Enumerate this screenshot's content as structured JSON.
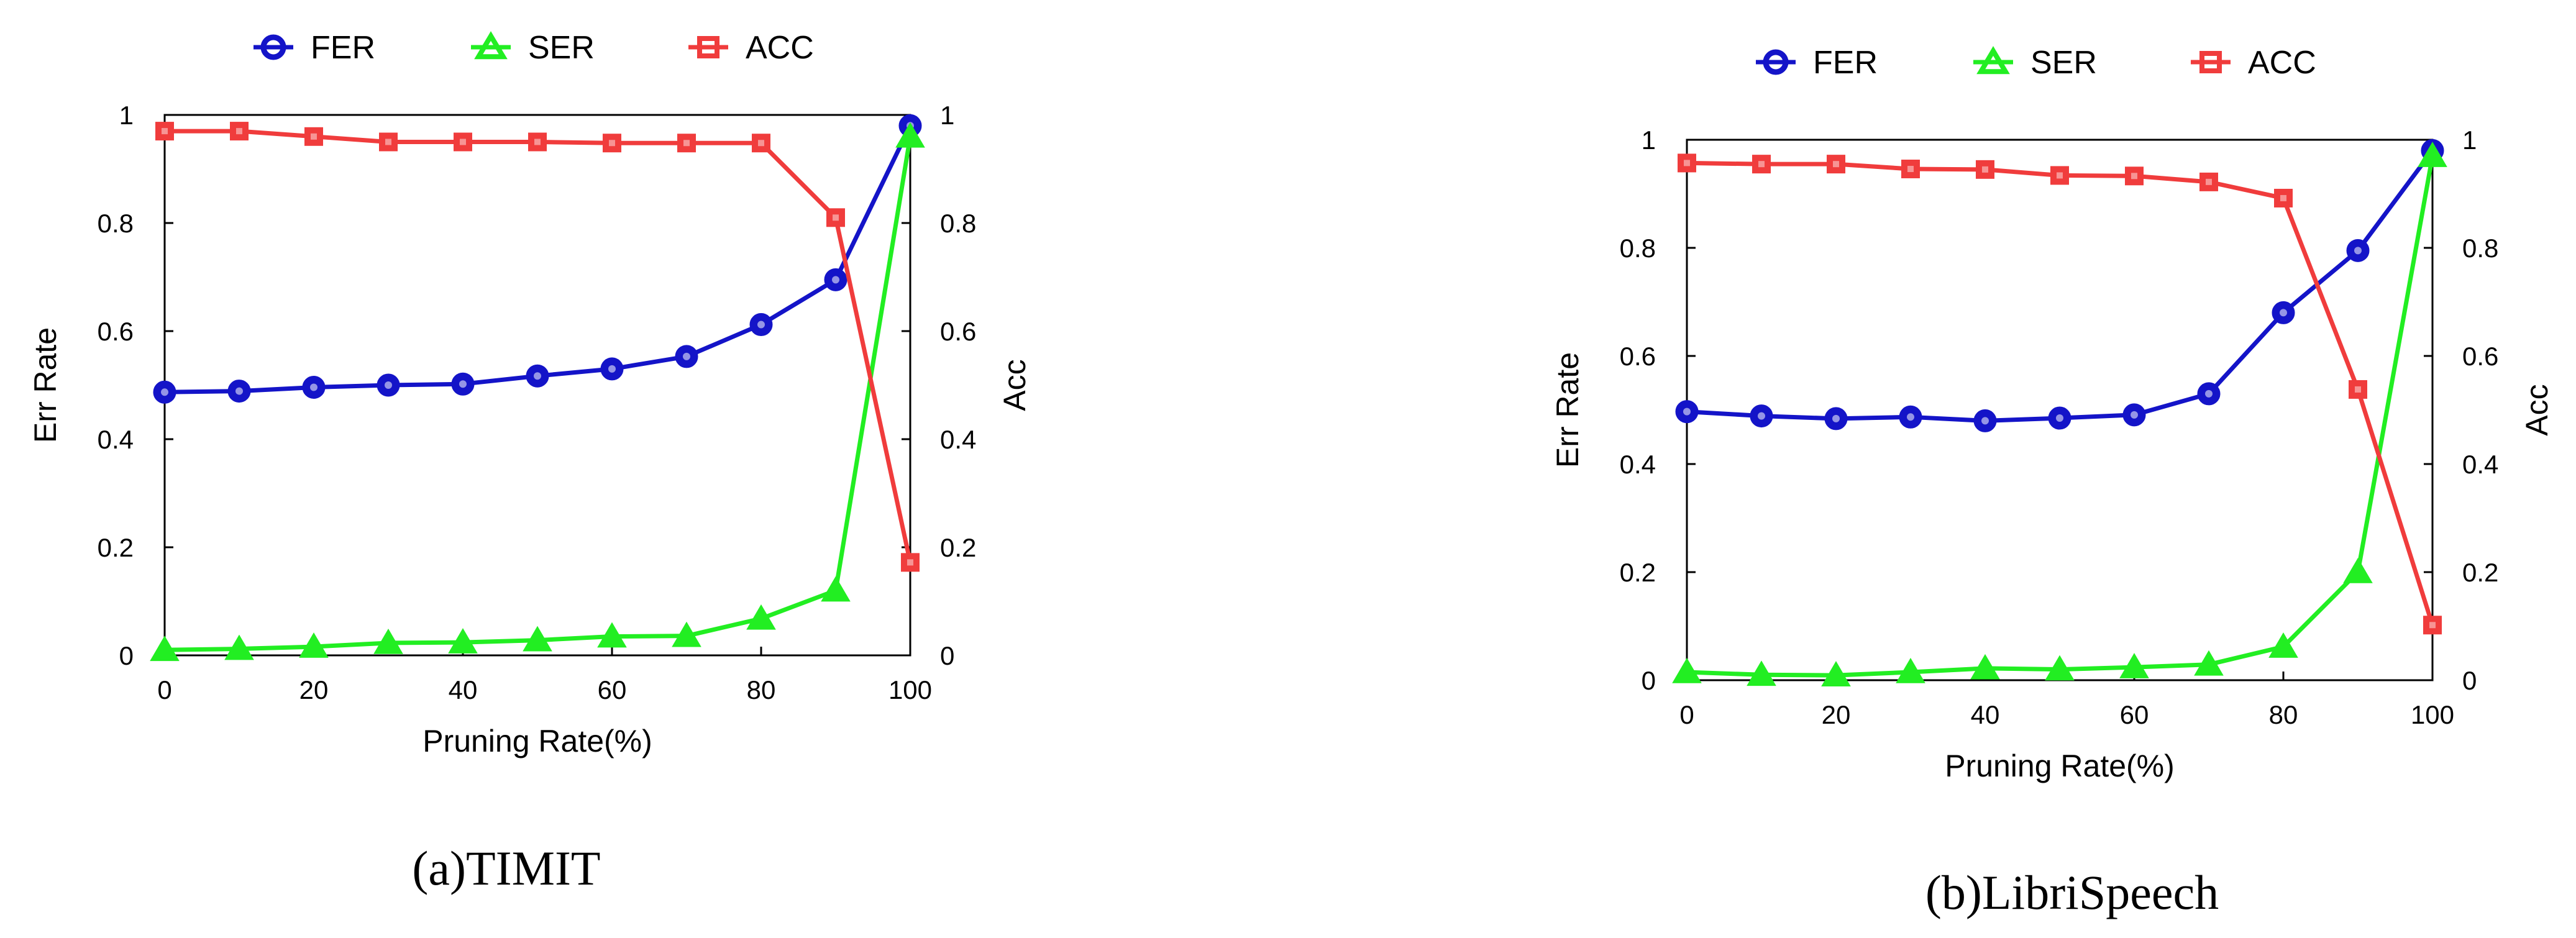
{
  "chart_data": [
    {
      "type": "line",
      "caption": "(a)TIMIT",
      "xlabel": "Pruning Rate(%)",
      "ylabel_left": "Err Rate",
      "ylabel_right": "Acc",
      "x": [
        0,
        10,
        20,
        30,
        40,
        50,
        60,
        70,
        80,
        90,
        100
      ],
      "xticks": [
        0,
        20,
        40,
        60,
        80,
        100
      ],
      "xlim": [
        0,
        100
      ],
      "yticks": [
        0,
        0.2,
        0.4,
        0.6,
        0.8,
        1
      ],
      "ylim": [
        0,
        1
      ],
      "legend_position": "top",
      "series": [
        {
          "name": "FER",
          "axis": "left",
          "marker": "circle",
          "color": "#1414c8",
          "values": [
            0.487,
            0.489,
            0.496,
            0.5,
            0.502,
            0.517,
            0.53,
            0.553,
            0.612,
            0.695,
            0.98
          ]
        },
        {
          "name": "SER",
          "axis": "left",
          "marker": "triangle",
          "color": "#22ee22",
          "values": [
            0.01,
            0.012,
            0.016,
            0.023,
            0.024,
            0.028,
            0.035,
            0.036,
            0.068,
            0.12,
            0.96
          ]
        },
        {
          "name": "ACC",
          "axis": "right",
          "marker": "square",
          "color": "#f03c3c",
          "values": [
            0.97,
            0.97,
            0.96,
            0.95,
            0.95,
            0.95,
            0.948,
            0.948,
            0.948,
            0.81,
            0.172
          ]
        }
      ]
    },
    {
      "type": "line",
      "caption": "(b)LibriSpeech",
      "xlabel": "Pruning Rate(%)",
      "ylabel_left": "Err Rate",
      "ylabel_right": "Acc",
      "x": [
        0,
        10,
        20,
        30,
        40,
        50,
        60,
        70,
        80,
        90,
        100
      ],
      "xticks": [
        0,
        20,
        40,
        60,
        80,
        100
      ],
      "xlim": [
        0,
        100
      ],
      "yticks": [
        0,
        0.2,
        0.4,
        0.6,
        0.8,
        1
      ],
      "ylim": [
        0,
        1
      ],
      "legend_position": "top",
      "series": [
        {
          "name": "FER",
          "axis": "left",
          "marker": "circle",
          "color": "#1414c8",
          "values": [
            0.497,
            0.489,
            0.484,
            0.487,
            0.48,
            0.485,
            0.491,
            0.53,
            0.68,
            0.795,
            0.98
          ]
        },
        {
          "name": "SER",
          "axis": "left",
          "marker": "triangle",
          "color": "#22ee22",
          "values": [
            0.015,
            0.01,
            0.009,
            0.015,
            0.022,
            0.02,
            0.024,
            0.029,
            0.062,
            0.2,
            0.97
          ]
        },
        {
          "name": "ACC",
          "axis": "right",
          "marker": "square",
          "color": "#f03c3c",
          "values": [
            0.957,
            0.955,
            0.955,
            0.946,
            0.945,
            0.934,
            0.933,
            0.922,
            0.892,
            0.538,
            0.102
          ]
        }
      ]
    }
  ]
}
